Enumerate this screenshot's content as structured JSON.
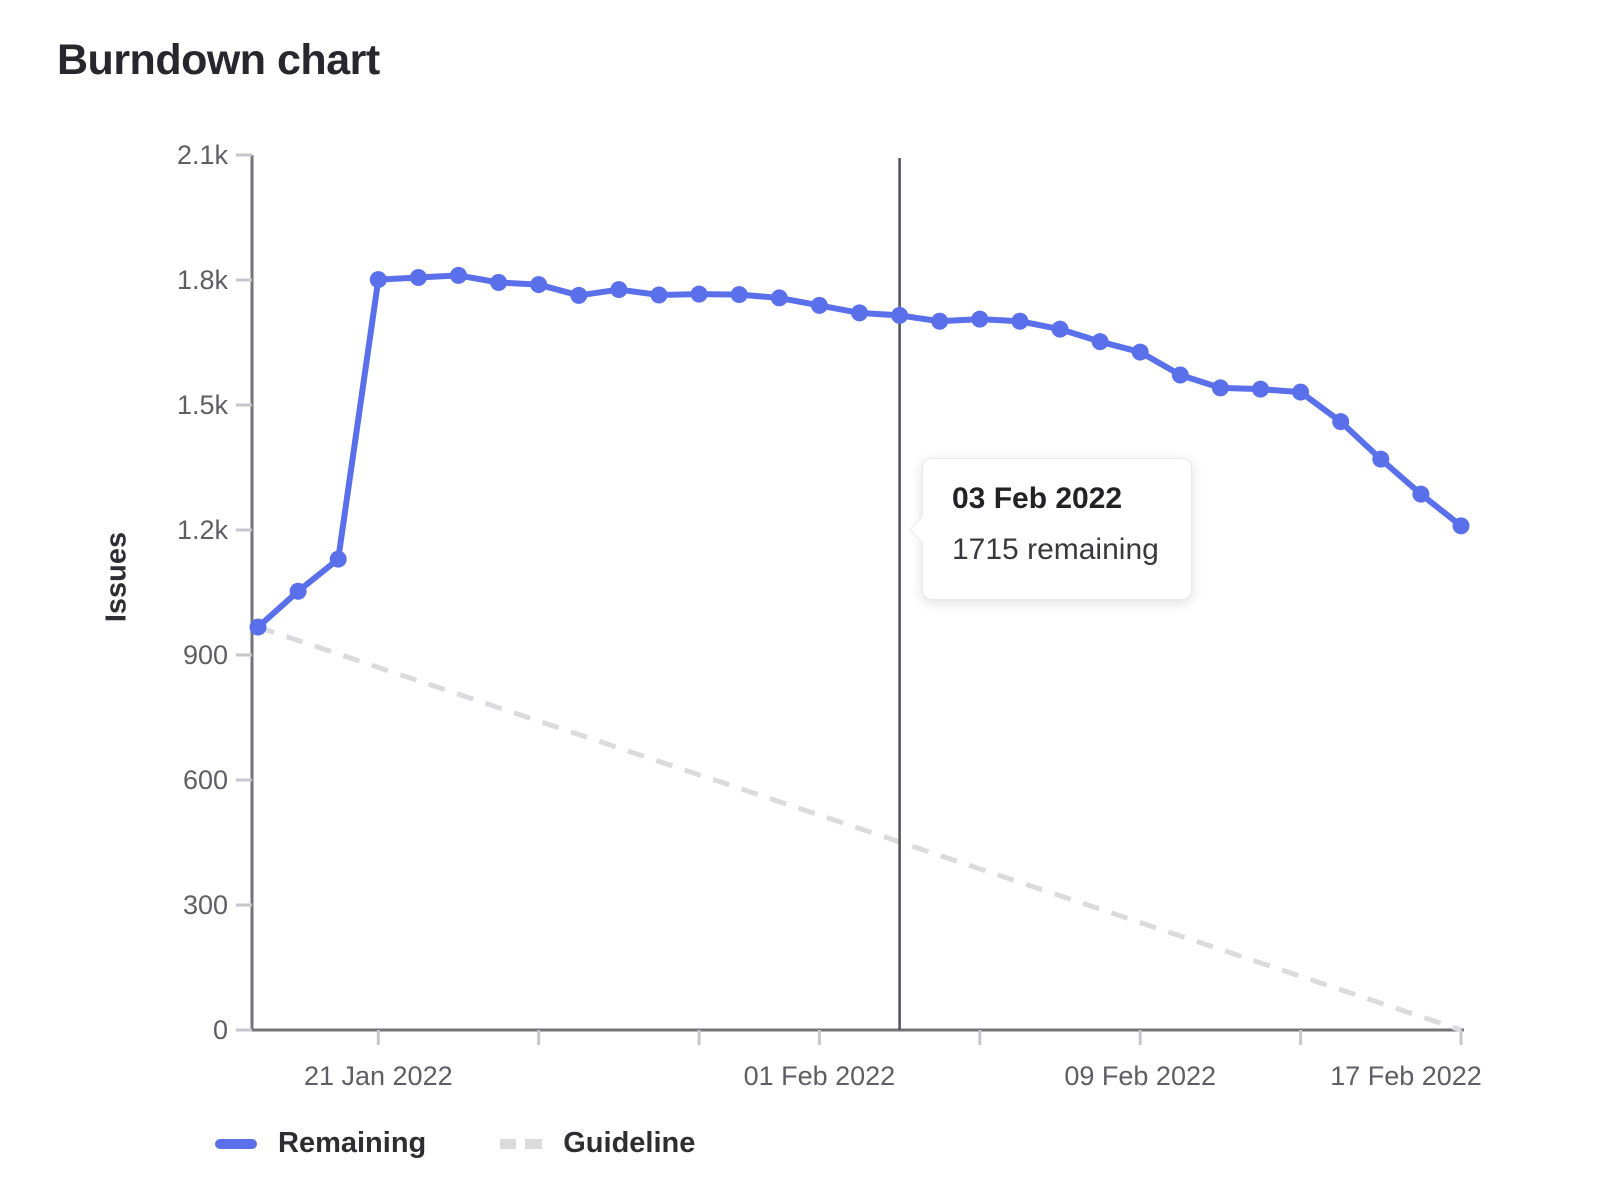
{
  "page": {
    "title": "Burndown chart"
  },
  "tooltip": {
    "title": "03 Feb 2022",
    "body": "1715 remaining"
  },
  "legend": {
    "items": [
      {
        "label": "Remaining",
        "swatch": "solid-line"
      },
      {
        "label": "Guideline",
        "swatch": "dashed-line"
      }
    ]
  },
  "colors": {
    "remaining": "#5a70ea",
    "guideline": "#dbdbdd",
    "axis_line": "#74737a",
    "tick_mark": "#c7c6cc",
    "tick_text": "#5f5e64",
    "marker_line": "#525257"
  },
  "chart_data": {
    "type": "line",
    "title": "Burndown chart",
    "xlabel": "",
    "ylabel": "Issues",
    "ylim": [
      0,
      2100
    ],
    "grid": false,
    "legend_position": "bottom",
    "y_ticks": [
      {
        "value": 0,
        "label": "0"
      },
      {
        "value": 300,
        "label": "300"
      },
      {
        "value": 600,
        "label": "600"
      },
      {
        "value": 900,
        "label": "900"
      },
      {
        "value": 1200,
        "label": "1.2k"
      },
      {
        "value": 1500,
        "label": "1.5k"
      },
      {
        "value": 1800,
        "label": "1.8k"
      },
      {
        "value": 2100,
        "label": "2.1k"
      }
    ],
    "x_ticks": [
      {
        "day": 3,
        "label": "21 Jan 2022"
      },
      {
        "day": 7,
        "label": ""
      },
      {
        "day": 11,
        "label": ""
      },
      {
        "day": 14,
        "label": "01 Feb 2022"
      },
      {
        "day": 18,
        "label": ""
      },
      {
        "day": 22,
        "label": "09 Feb 2022"
      },
      {
        "day": 26,
        "label": ""
      },
      {
        "day": 30,
        "label": "17 Feb 2022"
      }
    ],
    "x": [
      "18 Jan 2022",
      "19 Jan 2022",
      "20 Jan 2022",
      "21 Jan 2022",
      "22 Jan 2022",
      "23 Jan 2022",
      "24 Jan 2022",
      "25 Jan 2022",
      "26 Jan 2022",
      "27 Jan 2022",
      "28 Jan 2022",
      "29 Jan 2022",
      "30 Jan 2022",
      "31 Jan 2022",
      "01 Feb 2022",
      "02 Feb 2022",
      "03 Feb 2022",
      "04 Feb 2022",
      "05 Feb 2022",
      "06 Feb 2022",
      "07 Feb 2022",
      "08 Feb 2022",
      "09 Feb 2022",
      "10 Feb 2022",
      "11 Feb 2022",
      "12 Feb 2022",
      "13 Feb 2022",
      "14 Feb 2022",
      "15 Feb 2022",
      "16 Feb 2022",
      "17 Feb 2022"
    ],
    "series": [
      {
        "name": "Remaining",
        "style": "solid",
        "values": [
          967,
          1053,
          1130,
          1801,
          1806,
          1811,
          1794,
          1789,
          1763,
          1777,
          1764,
          1766,
          1765,
          1757,
          1739,
          1721,
          1715,
          1701,
          1706,
          1701,
          1682,
          1652,
          1627,
          1572,
          1541,
          1538,
          1531,
          1460,
          1370,
          1286,
          1210
        ]
      },
      {
        "name": "Guideline",
        "style": "dashed",
        "points": [
          {
            "day": 0,
            "value": 967
          },
          {
            "day": 30,
            "value": 0
          }
        ]
      }
    ],
    "marker": {
      "day": 16,
      "date": "03 Feb 2022",
      "value": 1715
    }
  }
}
